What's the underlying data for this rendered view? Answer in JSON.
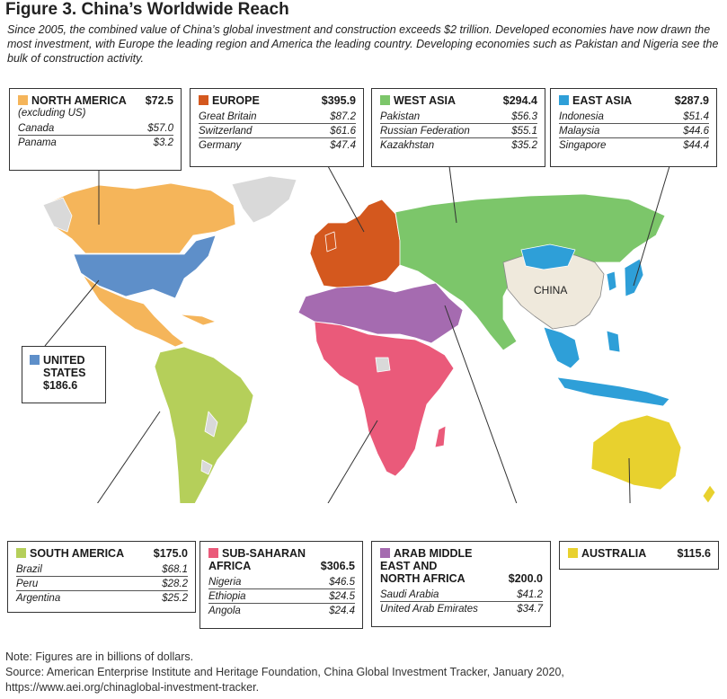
{
  "title": "Figure 3. China’s Worldwide Reach",
  "subtitle": "Since 2005, the combined value of China’s global investment and construction exceeds $2 trillion. Developed economies have now drawn the most investment, with Europe the leading region and America the leading country. Developing economies such as Pakistan and Nigeria see the bulk of construction activity.",
  "map_label_china": "CHINA",
  "colors": {
    "north_america": "#f5b55a",
    "europe": "#d4581e",
    "west_asia": "#7cc66a",
    "east_asia": "#2e9fd8",
    "united_states": "#5e8fc9",
    "south_america": "#b5cf5a",
    "sub_saharan_africa": "#ea5a7a",
    "arab_middle_east": "#a56bb0",
    "australia": "#e8d12e",
    "china": "#efe9dc",
    "no_data": "#d9d9d9"
  },
  "regions": {
    "north_america": {
      "name": "NORTH AMERICA",
      "total": "$72.5",
      "sub": "(excluding US)",
      "rows": [
        {
          "c": "Canada",
          "v": "$57.0"
        },
        {
          "c": "Panama",
          "v": "$3.2"
        }
      ]
    },
    "europe": {
      "name": "EUROPE",
      "total": "$395.9",
      "rows": [
        {
          "c": "Great Britain",
          "v": "$87.2"
        },
        {
          "c": "Switzerland",
          "v": "$61.6"
        },
        {
          "c": "Germany",
          "v": "$47.4"
        }
      ]
    },
    "west_asia": {
      "name": "WEST ASIA",
      "total": "$294.4",
      "rows": [
        {
          "c": "Pakistan",
          "v": "$56.3"
        },
        {
          "c": "Russian Federation",
          "v": "$55.1"
        },
        {
          "c": "Kazakhstan",
          "v": "$35.2"
        }
      ]
    },
    "east_asia": {
      "name": "EAST ASIA",
      "total": "$287.9",
      "rows": [
        {
          "c": "Indonesia",
          "v": "$51.4"
        },
        {
          "c": "Malaysia",
          "v": "$44.6"
        },
        {
          "c": "Singapore",
          "v": "$44.4"
        }
      ]
    },
    "united_states": {
      "name_line1": "UNITED",
      "name_line2": "STATES",
      "total": "$186.6"
    },
    "south_america": {
      "name": "SOUTH AMERICA",
      "total": "$175.0",
      "rows": [
        {
          "c": "Brazil",
          "v": "$68.1"
        },
        {
          "c": "Peru",
          "v": "$28.2"
        },
        {
          "c": "Argentina",
          "v": "$25.2"
        }
      ]
    },
    "sub_saharan_africa": {
      "name_line1": "SUB-SAHARAN",
      "name_line2": "AFRICA",
      "total": "$306.5",
      "rows": [
        {
          "c": "Nigeria",
          "v": "$46.5"
        },
        {
          "c": "Ethiopia",
          "v": "$24.5"
        },
        {
          "c": "Angola",
          "v": "$24.4"
        }
      ]
    },
    "arab_middle_east": {
      "name_line1": "ARAB MIDDLE",
      "name_line2": "EAST AND",
      "name_line3": "NORTH AFRICA",
      "total": "$200.0",
      "rows": [
        {
          "c": "Saudi Arabia",
          "v": "$41.2"
        },
        {
          "c": "United Arab Emirates",
          "v": "$34.7"
        }
      ]
    },
    "australia": {
      "name": "AUSTRALIA",
      "total": "$115.6"
    }
  },
  "note": "Note: Figures are in billions of dollars.",
  "source": "Source: American Enterprise Institute and Heritage Foundation, China Global Investment Tracker, January 2020, https://www.aei.org/chinaglobal-investment-tracker."
}
